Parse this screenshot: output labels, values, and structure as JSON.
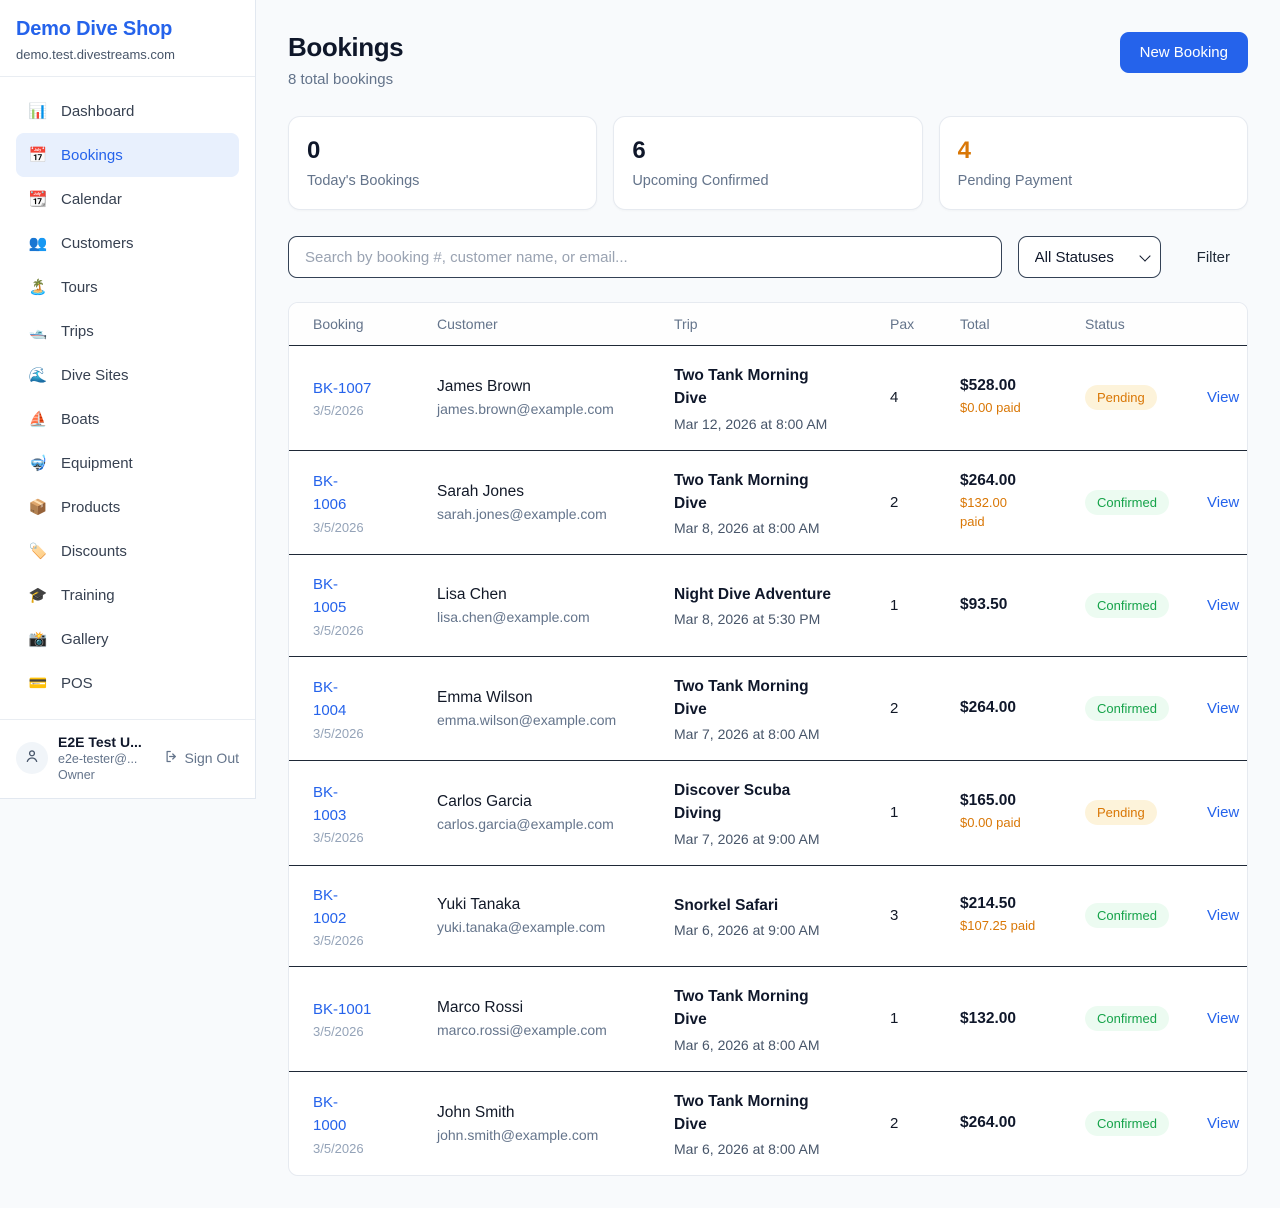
{
  "colors": {
    "accent": "#2563eb",
    "pending": "#d97706",
    "confirmed": "#16a34a",
    "paid_orange": "#d97706"
  },
  "sidebar": {
    "brand": {
      "name": "Demo Dive Shop",
      "domain": "demo.test.divestreams.com"
    },
    "nav": [
      {
        "icon": "📊",
        "label": "Dashboard",
        "active": false
      },
      {
        "icon": "📅",
        "label": "Bookings",
        "active": true
      },
      {
        "icon": "📆",
        "label": "Calendar",
        "active": false
      },
      {
        "icon": "👥",
        "label": "Customers",
        "active": false
      },
      {
        "icon": "🏝️",
        "label": "Tours",
        "active": false
      },
      {
        "icon": "🛥️",
        "label": "Trips",
        "active": false
      },
      {
        "icon": "🌊",
        "label": "Dive Sites",
        "active": false
      },
      {
        "icon": "⛵",
        "label": "Boats",
        "active": false
      },
      {
        "icon": "🤿",
        "label": "Equipment",
        "active": false
      },
      {
        "icon": "📦",
        "label": "Products",
        "active": false
      },
      {
        "icon": "🏷️",
        "label": "Discounts",
        "active": false
      },
      {
        "icon": "🎓",
        "label": "Training",
        "active": false
      },
      {
        "icon": "📸",
        "label": "Gallery",
        "active": false
      },
      {
        "icon": "💳",
        "label": "POS",
        "active": false
      }
    ],
    "user": {
      "name": "E2E Test U...",
      "email": "e2e-tester@...",
      "role": "Owner",
      "sign_out_label": "Sign Out"
    }
  },
  "header": {
    "title": "Bookings",
    "subtitle": "8 total bookings",
    "new_booking_label": "New Booking"
  },
  "stats": [
    {
      "value": "0",
      "label": "Today's Bookings",
      "accent": ""
    },
    {
      "value": "6",
      "label": "Upcoming Confirmed",
      "accent": ""
    },
    {
      "value": "4",
      "label": "Pending Payment",
      "accent": "orange"
    }
  ],
  "filters": {
    "search_placeholder": "Search by booking #, customer name, or email...",
    "status_selected": "All Statuses",
    "filter_label": "Filter"
  },
  "table": {
    "columns": [
      "Booking",
      "Customer",
      "Trip",
      "Pax",
      "Total",
      "Status"
    ],
    "view_label": "View",
    "rows": [
      {
        "id_lines": [
          "BK-1007"
        ],
        "date": "3/5/2026",
        "customer": "James Brown",
        "email": "james.brown@example.com",
        "trip_lines": [
          "Two Tank Morning",
          "Dive"
        ],
        "when": "Mar 12, 2026 at 8:00 AM",
        "pax": "4",
        "total": "$528.00",
        "paid_lines": [
          "$0.00 paid"
        ],
        "status": "Pending"
      },
      {
        "id_lines": [
          "BK-",
          "1006"
        ],
        "date": "3/5/2026",
        "customer": "Sarah Jones",
        "email": "sarah.jones@example.com",
        "trip_lines": [
          "Two Tank Morning",
          "Dive"
        ],
        "when": "Mar 8, 2026 at 8:00 AM",
        "pax": "2",
        "total": "$264.00",
        "paid_lines": [
          "$132.00",
          "paid"
        ],
        "status": "Confirmed"
      },
      {
        "id_lines": [
          "BK-",
          "1005"
        ],
        "date": "3/5/2026",
        "customer": "Lisa Chen",
        "email": "lisa.chen@example.com",
        "trip_lines": [
          "Night Dive Adventure"
        ],
        "when": "Mar 8, 2026 at 5:30 PM",
        "pax": "1",
        "total": "$93.50",
        "paid_lines": [],
        "status": "Confirmed"
      },
      {
        "id_lines": [
          "BK-",
          "1004"
        ],
        "date": "3/5/2026",
        "customer": "Emma Wilson",
        "email": "emma.wilson@example.com",
        "trip_lines": [
          "Two Tank Morning",
          "Dive"
        ],
        "when": "Mar 7, 2026 at 8:00 AM",
        "pax": "2",
        "total": "$264.00",
        "paid_lines": [],
        "status": "Confirmed"
      },
      {
        "id_lines": [
          "BK-",
          "1003"
        ],
        "date": "3/5/2026",
        "customer": "Carlos Garcia",
        "email": "carlos.garcia@example.com",
        "trip_lines": [
          "Discover Scuba",
          "Diving"
        ],
        "when": "Mar 7, 2026 at 9:00 AM",
        "pax": "1",
        "total": "$165.00",
        "paid_lines": [
          "$0.00 paid"
        ],
        "status": "Pending"
      },
      {
        "id_lines": [
          "BK-",
          "1002"
        ],
        "date": "3/5/2026",
        "customer": "Yuki Tanaka",
        "email": "yuki.tanaka@example.com",
        "trip_lines": [
          "Snorkel Safari"
        ],
        "when": "Mar 6, 2026 at 9:00 AM",
        "pax": "3",
        "total": "$214.50",
        "paid_lines": [
          "$107.25 paid"
        ],
        "status": "Confirmed"
      },
      {
        "id_lines": [
          "BK-1001"
        ],
        "date": "3/5/2026",
        "customer": "Marco Rossi",
        "email": "marco.rossi@example.com",
        "trip_lines": [
          "Two Tank Morning",
          "Dive"
        ],
        "when": "Mar 6, 2026 at 8:00 AM",
        "pax": "1",
        "total": "$132.00",
        "paid_lines": [],
        "status": "Confirmed"
      },
      {
        "id_lines": [
          "BK-",
          "1000"
        ],
        "date": "3/5/2026",
        "customer": "John Smith",
        "email": "john.smith@example.com",
        "trip_lines": [
          "Two Tank Morning",
          "Dive"
        ],
        "when": "Mar 6, 2026 at 8:00 AM",
        "pax": "2",
        "total": "$264.00",
        "paid_lines": [],
        "status": "Confirmed"
      }
    ]
  }
}
